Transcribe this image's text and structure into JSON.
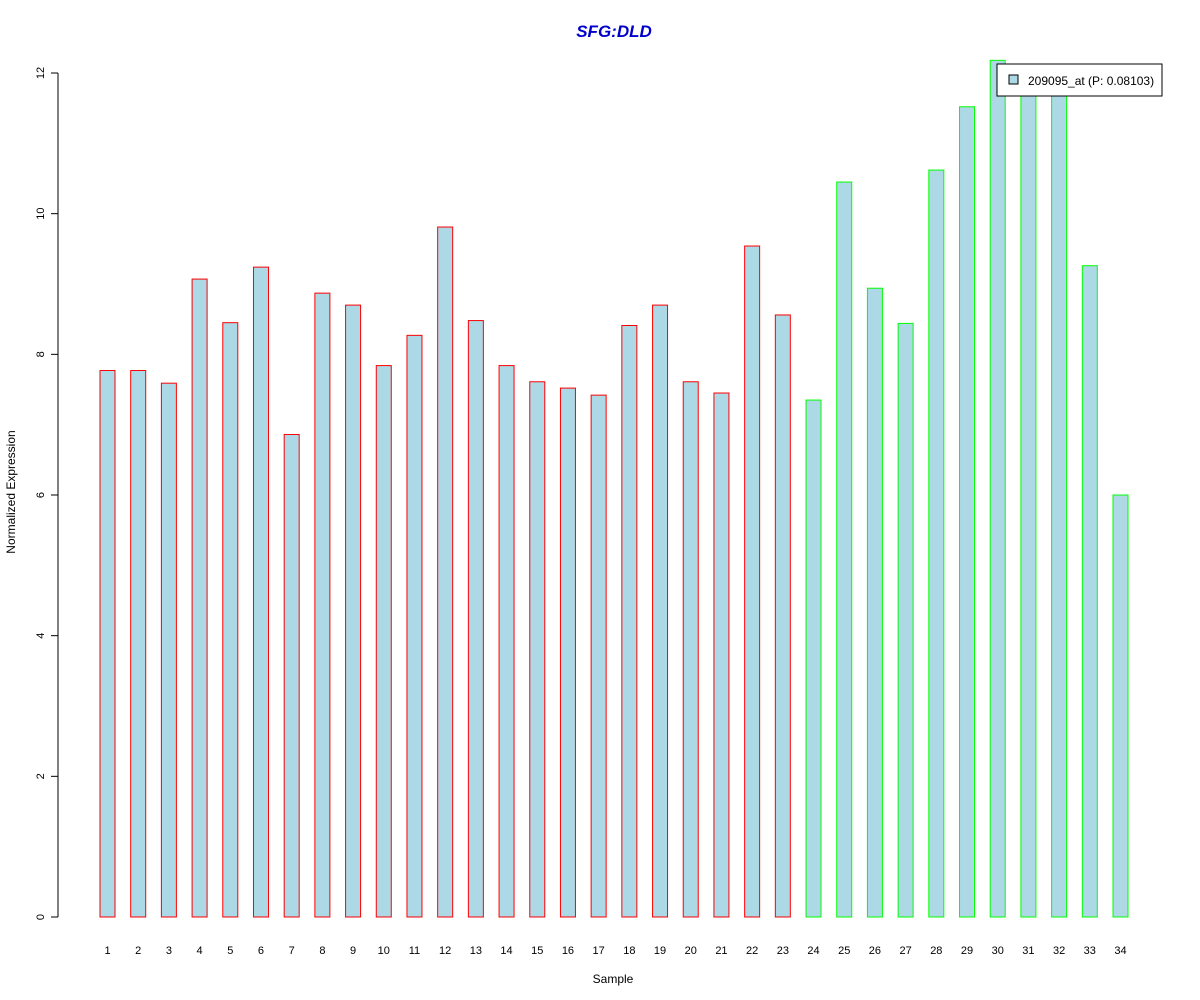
{
  "chart_data": {
    "type": "bar",
    "title": "SFG:DLD",
    "xlabel": "Sample",
    "ylabel": "Normalized Expression",
    "ylim": [
      0,
      12
    ],
    "yticks": [
      0,
      2,
      4,
      6,
      8,
      10,
      12
    ],
    "categories": [
      "1",
      "2",
      "3",
      "4",
      "5",
      "6",
      "7",
      "8",
      "9",
      "10",
      "11",
      "12",
      "13",
      "14",
      "15",
      "16",
      "17",
      "18",
      "19",
      "20",
      "21",
      "22",
      "23",
      "24",
      "25",
      "26",
      "27",
      "28",
      "29",
      "30",
      "31",
      "32",
      "33",
      "34"
    ],
    "values": [
      7.77,
      7.77,
      7.59,
      9.07,
      8.45,
      9.24,
      6.86,
      8.87,
      8.7,
      7.84,
      8.27,
      9.81,
      8.48,
      7.84,
      7.61,
      7.52,
      7.42,
      8.41,
      8.7,
      7.61,
      7.45,
      9.54,
      8.56,
      7.35,
      10.45,
      8.94,
      8.44,
      10.62,
      11.52,
      12.18,
      11.72,
      11.68,
      9.26,
      6.0
    ],
    "groups": [
      1,
      1,
      1,
      1,
      1,
      1,
      1,
      1,
      1,
      1,
      1,
      1,
      1,
      1,
      1,
      1,
      1,
      1,
      1,
      1,
      1,
      1,
      1,
      2,
      2,
      2,
      2,
      2,
      2,
      2,
      2,
      2,
      2,
      2
    ],
    "colors": {
      "fill": "#add8e6",
      "group1_border": "#ff0000",
      "group2_border": "#00ff00",
      "title": "#0000cd"
    },
    "legend": {
      "position": "top-right",
      "label": "209095_at (P: 0.08103)"
    },
    "grid": false
  }
}
